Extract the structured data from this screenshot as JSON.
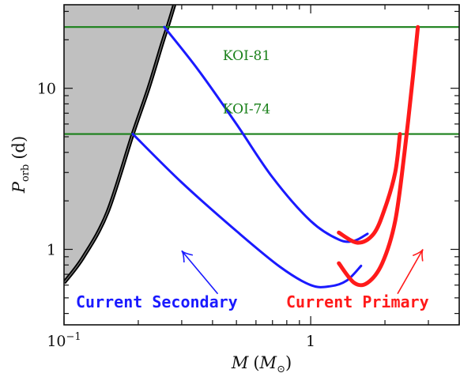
{
  "chart_data": {
    "type": "line",
    "title": "",
    "xlabel": {
      "main": "M",
      "paren_open": "(",
      "unit_main": "M",
      "unit_sub": "⊙",
      "paren_close": ")"
    },
    "ylabel": {
      "main": "P",
      "sub": "orb",
      "unit": "(d)"
    },
    "xscale": "log",
    "yscale": "log",
    "xlim": [
      0.1,
      4.0
    ],
    "ylim": [
      0.34,
      33
    ],
    "xticks": [
      {
        "value": 0.1,
        "base": "10",
        "exp": "−1"
      },
      {
        "value": 1,
        "label": "1"
      }
    ],
    "yticks": [
      {
        "value": 1,
        "label": "1"
      },
      {
        "value": 10,
        "label": "10"
      }
    ],
    "colors": {
      "primary": "#ff1a1a",
      "secondary": "#1a1aff",
      "koi": "#1a801a",
      "boundary": "#000000",
      "shade": "#c0c0c0"
    },
    "forbidden_region": {
      "boundary": [
        [
          0.1,
          0.62
        ],
        [
          0.12,
          0.9
        ],
        [
          0.15,
          1.7
        ],
        [
          0.19,
          5.2
        ],
        [
          0.22,
          10
        ],
        [
          0.25,
          19
        ],
        [
          0.265,
          25
        ],
        [
          0.28,
          33
        ]
      ]
    },
    "koi_lines": [
      {
        "name": "KOI-81",
        "y": 24.0,
        "label_x": 0.55,
        "label_y": 15.0
      },
      {
        "name": "KOI-74",
        "y": 5.2,
        "label_x": 0.55,
        "label_y": 7.0
      }
    ],
    "series": [
      {
        "role": "secondary",
        "points": [
          [
            0.255,
            24.0
          ],
          [
            0.35,
            13
          ],
          [
            0.5,
            6
          ],
          [
            0.7,
            2.8
          ],
          [
            1.0,
            1.5
          ],
          [
            1.3,
            1.15
          ],
          [
            1.5,
            1.13
          ],
          [
            1.7,
            1.25
          ]
        ]
      },
      {
        "role": "secondary",
        "points": [
          [
            0.19,
            5.2
          ],
          [
            0.3,
            2.6
          ],
          [
            0.5,
            1.3
          ],
          [
            0.75,
            0.78
          ],
          [
            1.0,
            0.6
          ],
          [
            1.2,
            0.59
          ],
          [
            1.4,
            0.64
          ],
          [
            1.6,
            0.79
          ]
        ]
      },
      {
        "role": "primary",
        "points": [
          [
            1.3,
            1.27
          ],
          [
            1.55,
            1.1
          ],
          [
            1.8,
            1.25
          ],
          [
            2.0,
            1.8
          ],
          [
            2.2,
            3.0
          ],
          [
            2.3,
            5.2
          ]
        ]
      },
      {
        "role": "primary",
        "points": [
          [
            1.3,
            0.82
          ],
          [
            1.5,
            0.62
          ],
          [
            1.7,
            0.62
          ],
          [
            1.95,
            0.82
          ],
          [
            2.2,
            1.5
          ],
          [
            2.4,
            4
          ],
          [
            2.6,
            12
          ],
          [
            2.72,
            24
          ]
        ]
      }
    ],
    "arrows": [
      {
        "role": "secondary",
        "from": [
          0.42,
          0.53
        ],
        "to": [
          0.3,
          0.98
        ]
      },
      {
        "role": "primary",
        "from": [
          2.25,
          0.53
        ],
        "to": [
          2.85,
          1.0
        ]
      }
    ],
    "annotations": [
      {
        "text": "Current Secondary",
        "role": "secondary"
      },
      {
        "text": "Current Primary",
        "role": "primary"
      }
    ]
  }
}
